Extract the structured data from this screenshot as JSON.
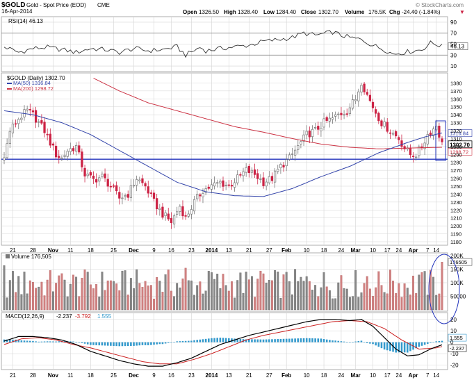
{
  "header": {
    "symbol": "$GOLD",
    "name": "Gold - Spot Price (EOD)",
    "exchange": "CME",
    "date": "16-Apr-2014",
    "watermark": "© StockCharts.com",
    "open_label": "Open",
    "open": "1326.50",
    "high_label": "High",
    "high": "1328.40",
    "low_label": "Low",
    "low": "1284.40",
    "close_label": "Close",
    "close": "1302.70",
    "volume_label": "Volume",
    "volume": "176.5K",
    "chg_label": "Chg",
    "chg": "-24.40 (-1.84%)",
    "chg_arrow": "▼"
  },
  "chart_data": [
    {
      "type": "line",
      "title": "RSI(14) 46.13",
      "ylim": [
        0,
        100
      ],
      "ticks": [
        "90",
        "70",
        "50",
        "30",
        "10"
      ],
      "last_label": "46.13",
      "reference_lines": [
        70,
        30
      ],
      "key_points": [
        [
          0,
          45
        ],
        [
          5,
          35
        ],
        [
          10,
          42
        ],
        [
          15,
          44
        ],
        [
          20,
          40
        ],
        [
          25,
          35
        ],
        [
          30,
          42
        ],
        [
          35,
          40
        ],
        [
          40,
          35
        ],
        [
          45,
          42
        ],
        [
          50,
          38
        ],
        [
          55,
          40
        ],
        [
          60,
          45
        ],
        [
          63,
          30
        ],
        [
          68,
          44
        ],
        [
          70,
          38
        ],
        [
          75,
          42
        ],
        [
          80,
          45
        ],
        [
          85,
          48
        ],
        [
          90,
          55
        ],
        [
          95,
          58
        ],
        [
          100,
          62
        ],
        [
          104,
          70
        ],
        [
          108,
          66
        ],
        [
          112,
          70
        ],
        [
          114,
          72
        ],
        [
          117,
          66
        ],
        [
          120,
          62
        ],
        [
          124,
          58
        ],
        [
          128,
          48
        ],
        [
          132,
          40
        ],
        [
          135,
          32
        ],
        [
          140,
          36
        ],
        [
          145,
          40
        ],
        [
          148,
          52
        ],
        [
          150,
          50
        ],
        [
          152,
          46
        ]
      ]
    },
    {
      "type": "candlestick",
      "title": "$GOLD (Daily) 1302.70",
      "ylim": [
        1180,
        1390
      ],
      "ticks": [
        "1380",
        "1370",
        "1360",
        "1350",
        "1340",
        "1330",
        "1320",
        "1310",
        "1300",
        "1290",
        "1280",
        "1270",
        "1260",
        "1250",
        "1240",
        "1230",
        "1220",
        "1210",
        "1200",
        "1190",
        "1180"
      ],
      "series": [
        {
          "name": "MA(50)",
          "label": "MA(50) 1316.84",
          "color": "#3344aa"
        },
        {
          "name": "MA(200)",
          "label": "MA(200) 1298.72",
          "color": "#cc3344"
        }
      ],
      "horizontal_line": 1284,
      "close_key_points": [
        [
          0,
          1285
        ],
        [
          2,
          1320
        ],
        [
          5,
          1335
        ],
        [
          8,
          1345
        ],
        [
          10,
          1340
        ],
        [
          12,
          1330
        ],
        [
          14,
          1320
        ],
        [
          16,
          1305
        ],
        [
          18,
          1290
        ],
        [
          20,
          1285
        ],
        [
          22,
          1295
        ],
        [
          25,
          1300
        ],
        [
          28,
          1265
        ],
        [
          31,
          1258
        ],
        [
          34,
          1262
        ],
        [
          37,
          1250
        ],
        [
          40,
          1235
        ],
        [
          43,
          1240
        ],
        [
          46,
          1260
        ],
        [
          49,
          1250
        ],
        [
          52,
          1230
        ],
        [
          55,
          1215
        ],
        [
          58,
          1205
        ],
        [
          61,
          1225
        ],
        [
          63,
          1210
        ],
        [
          66,
          1230
        ],
        [
          69,
          1245
        ],
        [
          72,
          1250
        ],
        [
          75,
          1255
        ],
        [
          78,
          1250
        ],
        [
          81,
          1260
        ],
        [
          84,
          1270
        ],
        [
          87,
          1265
        ],
        [
          90,
          1255
        ],
        [
          93,
          1260
        ],
        [
          96,
          1275
        ],
        [
          99,
          1285
        ],
        [
          102,
          1300
        ],
        [
          105,
          1315
        ],
        [
          108,
          1320
        ],
        [
          111,
          1330
        ],
        [
          114,
          1335
        ],
        [
          116,
          1340
        ],
        [
          119,
          1345
        ],
        [
          122,
          1360
        ],
        [
          124,
          1382
        ],
        [
          126,
          1365
        ],
        [
          128,
          1350
        ],
        [
          131,
          1330
        ],
        [
          134,
          1320
        ],
        [
          137,
          1310
        ],
        [
          139,
          1298
        ],
        [
          141,
          1290
        ],
        [
          143,
          1290
        ],
        [
          145,
          1300
        ],
        [
          147,
          1315
        ],
        [
          149,
          1322
        ],
        [
          150,
          1327
        ],
        [
          152,
          1303
        ]
      ],
      "ma50_key_points": [
        [
          0,
          1345
        ],
        [
          10,
          1340
        ],
        [
          20,
          1330
        ],
        [
          30,
          1315
        ],
        [
          40,
          1295
        ],
        [
          50,
          1275
        ],
        [
          60,
          1255
        ],
        [
          70,
          1243
        ],
        [
          80,
          1238
        ],
        [
          90,
          1237
        ],
        [
          100,
          1247
        ],
        [
          110,
          1262
        ],
        [
          120,
          1275
        ],
        [
          130,
          1292
        ],
        [
          140,
          1305
        ],
        [
          146,
          1312
        ],
        [
          152,
          1317
        ]
      ],
      "ma200_key_points": [
        [
          31,
          1386
        ],
        [
          40,
          1370
        ],
        [
          50,
          1355
        ],
        [
          60,
          1345
        ],
        [
          70,
          1335
        ],
        [
          80,
          1325
        ],
        [
          90,
          1318
        ],
        [
          100,
          1310
        ],
        [
          110,
          1303
        ],
        [
          120,
          1299
        ],
        [
          130,
          1297
        ],
        [
          140,
          1298
        ],
        [
          152,
          1299
        ]
      ],
      "price_labels": {
        "ma50": "1316.84",
        "close": "1302.70",
        "ma200": "1298.72"
      }
    },
    {
      "type": "bar",
      "title": "Volume 176,505",
      "ticks": [
        "200K",
        "150K",
        "100K",
        "50000"
      ],
      "last_label": "176505",
      "ylim": [
        0,
        200000
      ]
    },
    {
      "type": "line",
      "title": "MACD(12,26,9)",
      "values_label": "-2.237, -3.792, 1.555",
      "title_parts": {
        "name": "MACD(12,26,9)",
        "macd": "-2.237",
        "signal": "-3.792",
        "hist": "1.555"
      },
      "ticks": [
        "20",
        "10",
        "0",
        "-10",
        "-20"
      ],
      "ylim": [
        -24,
        26
      ],
      "last_labels": {
        "hist": "1.555",
        "macd": "-2.237"
      },
      "series": [
        {
          "name": "MACD",
          "color": "#000000"
        },
        {
          "name": "Signal",
          "color": "#cc2222"
        },
        {
          "name": "Histogram",
          "color": "#3399cc"
        }
      ],
      "macd_key_points": [
        [
          0,
          1
        ],
        [
          5,
          5
        ],
        [
          10,
          5
        ],
        [
          15,
          4
        ],
        [
          20,
          2
        ],
        [
          25,
          -2
        ],
        [
          30,
          -8
        ],
        [
          35,
          -12
        ],
        [
          40,
          -16
        ],
        [
          45,
          -19
        ],
        [
          50,
          -21
        ],
        [
          55,
          -21
        ],
        [
          60,
          -18
        ],
        [
          65,
          -14
        ],
        [
          70,
          -8
        ],
        [
          75,
          -2
        ],
        [
          80,
          2
        ],
        [
          85,
          6
        ],
        [
          90,
          9
        ],
        [
          95,
          12
        ],
        [
          100,
          15
        ],
        [
          105,
          18
        ],
        [
          110,
          20
        ],
        [
          115,
          20
        ],
        [
          120,
          19
        ],
        [
          124,
          20
        ],
        [
          128,
          14
        ],
        [
          132,
          4
        ],
        [
          136,
          -6
        ],
        [
          140,
          -12
        ],
        [
          144,
          -11
        ],
        [
          148,
          -6
        ],
        [
          150,
          -4
        ],
        [
          152,
          -2.237
        ]
      ],
      "signal_key_points": [
        [
          0,
          -2
        ],
        [
          6,
          3
        ],
        [
          12,
          4
        ],
        [
          18,
          2
        ],
        [
          24,
          -2
        ],
        [
          30,
          -5
        ],
        [
          36,
          -9
        ],
        [
          42,
          -13
        ],
        [
          48,
          -17
        ],
        [
          54,
          -19
        ],
        [
          60,
          -19
        ],
        [
          66,
          -15
        ],
        [
          72,
          -10
        ],
        [
          78,
          -4
        ],
        [
          84,
          2
        ],
        [
          90,
          6
        ],
        [
          96,
          9
        ],
        [
          102,
          12
        ],
        [
          108,
          15
        ],
        [
          114,
          18
        ],
        [
          120,
          19
        ],
        [
          126,
          18
        ],
        [
          132,
          12
        ],
        [
          138,
          2
        ],
        [
          144,
          -6
        ],
        [
          150,
          -5
        ],
        [
          152,
          -3.792
        ]
      ]
    }
  ],
  "x_axis": {
    "labels": [
      "21",
      "28",
      "Nov",
      "11",
      "18",
      "25",
      "Dec",
      "9",
      "16",
      "23",
      "2014",
      "13",
      "21",
      "27",
      "Feb",
      "10",
      "18",
      "24",
      "Mar",
      "10",
      "17",
      "24",
      "Apr",
      "7",
      "14"
    ],
    "bold": [
      "Nov",
      "Dec",
      "2014",
      "Feb",
      "Mar",
      "Apr"
    ]
  },
  "colors": {
    "up": "#777777",
    "down": "#cc2244",
    "ma50": "#3344aa",
    "ma200": "#cc3344",
    "hline": "#2233bb",
    "grid": "#d4d4d4"
  }
}
